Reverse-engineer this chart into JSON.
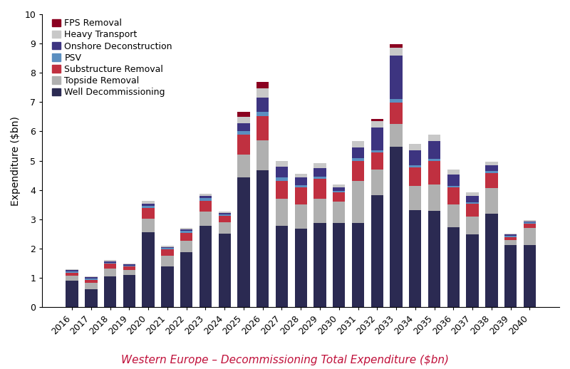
{
  "years": [
    2016,
    2017,
    2018,
    2019,
    2020,
    2021,
    2022,
    2023,
    2024,
    2025,
    2026,
    2027,
    2028,
    2029,
    2030,
    2031,
    2032,
    2033,
    2034,
    2035,
    2036,
    2037,
    2038,
    2039,
    2040
  ],
  "categories": [
    "Well Decommissioning",
    "Topside Removal",
    "Substructure Removal",
    "PSV",
    "Onshore Deconstruction",
    "Heavy Transport",
    "FPS Removal"
  ],
  "colors": [
    "#2B2A52",
    "#B0B0B0",
    "#C03040",
    "#5B8FC0",
    "#3D3480",
    "#C8C8C8",
    "#8B0020"
  ],
  "data": {
    "Well Decommissioning": [
      0.9,
      0.62,
      1.05,
      1.1,
      2.55,
      1.38,
      1.88,
      2.78,
      2.52,
      4.42,
      4.68,
      2.78,
      2.68,
      2.88,
      2.88,
      2.88,
      3.82,
      5.48,
      3.32,
      3.28,
      2.72,
      2.48,
      3.18,
      2.12,
      2.12
    ],
    "Topside Removal": [
      0.18,
      0.22,
      0.28,
      0.18,
      0.48,
      0.38,
      0.38,
      0.48,
      0.38,
      0.78,
      1.02,
      0.92,
      0.82,
      0.82,
      0.72,
      1.42,
      0.88,
      0.78,
      0.82,
      0.92,
      0.78,
      0.62,
      0.88,
      0.18,
      0.58
    ],
    "Substructure Removal": [
      0.1,
      0.1,
      0.15,
      0.1,
      0.35,
      0.22,
      0.28,
      0.38,
      0.22,
      0.68,
      0.82,
      0.62,
      0.58,
      0.68,
      0.32,
      0.68,
      0.58,
      0.72,
      0.62,
      0.78,
      0.58,
      0.42,
      0.52,
      0.1,
      0.15
    ],
    "PSV": [
      0.04,
      0.04,
      0.04,
      0.04,
      0.08,
      0.04,
      0.06,
      0.08,
      0.04,
      0.12,
      0.15,
      0.1,
      0.08,
      0.08,
      0.06,
      0.1,
      0.08,
      0.12,
      0.08,
      0.08,
      0.06,
      0.06,
      0.08,
      0.04,
      0.04
    ],
    "Onshore Deconstruction": [
      0.04,
      0.04,
      0.04,
      0.04,
      0.08,
      0.04,
      0.06,
      0.08,
      0.06,
      0.28,
      0.48,
      0.38,
      0.28,
      0.28,
      0.12,
      0.38,
      0.78,
      1.48,
      0.52,
      0.62,
      0.38,
      0.22,
      0.18,
      0.04,
      0.04
    ],
    "Heavy Transport": [
      0.04,
      0.04,
      0.04,
      0.04,
      0.08,
      0.04,
      0.04,
      0.08,
      0.04,
      0.22,
      0.32,
      0.18,
      0.12,
      0.18,
      0.08,
      0.22,
      0.22,
      0.28,
      0.22,
      0.22,
      0.18,
      0.12,
      0.12,
      0.04,
      0.04
    ],
    "FPS Removal": [
      0.0,
      0.0,
      0.0,
      0.0,
      0.0,
      0.0,
      0.0,
      0.0,
      0.0,
      0.18,
      0.22,
      0.0,
      0.0,
      0.0,
      0.0,
      0.0,
      0.06,
      0.12,
      0.0,
      0.0,
      0.0,
      0.0,
      0.0,
      0.0,
      0.0
    ]
  },
  "title": "Western Europe – Decommissioning Total Expenditure ($bn)",
  "ylabel": "Expenditure ($bn)",
  "ylim": [
    0,
    10
  ],
  "yticks": [
    0,
    1,
    2,
    3,
    4,
    5,
    6,
    7,
    8,
    9,
    10
  ],
  "title_color": "#C0103A",
  "title_fontsize": 11,
  "axis_label_fontsize": 10,
  "tick_fontsize": 9,
  "legend_fontsize": 9,
  "background_color": "#FFFFFF"
}
